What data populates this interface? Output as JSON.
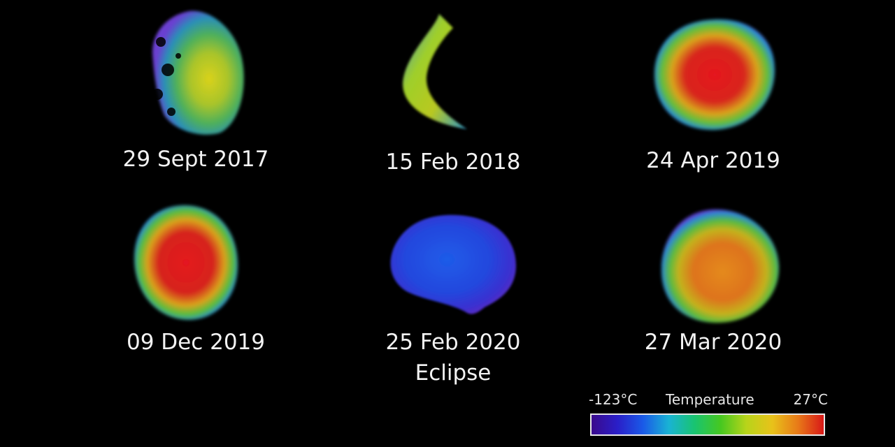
{
  "panels": [
    {
      "date": "29 Sept 2017",
      "note": ""
    },
    {
      "date": "15 Feb 2018",
      "note": ""
    },
    {
      "date": "24 Apr 2019",
      "note": ""
    },
    {
      "date": "09 Dec 2019",
      "note": ""
    },
    {
      "date": "25 Feb 2020",
      "note": "Eclipse"
    },
    {
      "date": "27 Mar 2020",
      "note": ""
    }
  ],
  "legend": {
    "title": "Temperature",
    "min_label": "-123°C",
    "max_label": "27°C",
    "colors": [
      "#3a0a8c",
      "#2a1ec8",
      "#1a5ae8",
      "#19b3d4",
      "#19c470",
      "#46c820",
      "#b8d41a",
      "#e8c21a",
      "#e87a18",
      "#d81818"
    ]
  }
}
